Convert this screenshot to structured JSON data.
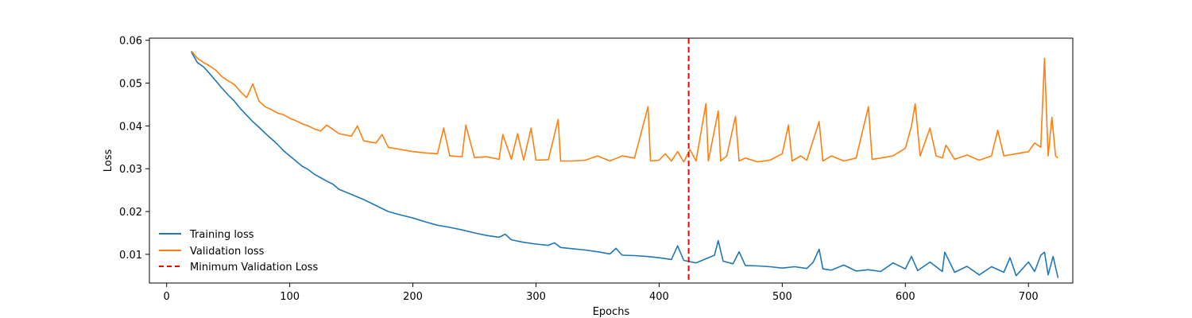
{
  "chart_data": {
    "type": "line",
    "xlabel": "Epochs",
    "ylabel": "Loss",
    "xlim": [
      -14,
      736
    ],
    "ylim": [
      0.0033,
      0.0605
    ],
    "xticks": [
      0,
      100,
      200,
      300,
      400,
      500,
      600,
      700
    ],
    "yticks": [
      0.01,
      0.02,
      0.03,
      0.04,
      0.05,
      0.06
    ],
    "x_tick_labels": [
      "0",
      "100",
      "200",
      "300",
      "400",
      "500",
      "600",
      "700"
    ],
    "y_tick_labels": [
      "0.01",
      "0.02",
      "0.03",
      "0.04",
      "0.05",
      "0.06"
    ],
    "legend_position": "lower-left",
    "series": [
      {
        "name": "Training loss",
        "color": "#1f77b4",
        "points": [
          [
            20,
            0.0573
          ],
          [
            25,
            0.0548
          ],
          [
            30,
            0.0538
          ],
          [
            35,
            0.0522
          ],
          [
            40,
            0.0505
          ],
          [
            45,
            0.0488
          ],
          [
            50,
            0.0472
          ],
          [
            55,
            0.0458
          ],
          [
            60,
            0.044
          ],
          [
            65,
            0.0425
          ],
          [
            70,
            0.041
          ],
          [
            75,
            0.0397
          ],
          [
            80,
            0.0383
          ],
          [
            85,
            0.037
          ],
          [
            90,
            0.0357
          ],
          [
            95,
            0.0342
          ],
          [
            100,
            0.033
          ],
          [
            105,
            0.0318
          ],
          [
            110,
            0.0306
          ],
          [
            115,
            0.0298
          ],
          [
            120,
            0.0287
          ],
          [
            125,
            0.0279
          ],
          [
            130,
            0.0271
          ],
          [
            135,
            0.0264
          ],
          [
            140,
            0.0252
          ],
          [
            150,
            0.024
          ],
          [
            160,
            0.0228
          ],
          [
            170,
            0.0214
          ],
          [
            180,
            0.02
          ],
          [
            190,
            0.0192
          ],
          [
            200,
            0.0185
          ],
          [
            210,
            0.0176
          ],
          [
            220,
            0.0168
          ],
          [
            230,
            0.0163
          ],
          [
            240,
            0.0157
          ],
          [
            250,
            0.015
          ],
          [
            260,
            0.0144
          ],
          [
            270,
            0.014
          ],
          [
            275,
            0.0147
          ],
          [
            280,
            0.0134
          ],
          [
            290,
            0.0128
          ],
          [
            300,
            0.0124
          ],
          [
            310,
            0.0121
          ],
          [
            315,
            0.0127
          ],
          [
            320,
            0.0116
          ],
          [
            330,
            0.0113
          ],
          [
            340,
            0.011
          ],
          [
            350,
            0.0106
          ],
          [
            360,
            0.0101
          ],
          [
            365,
            0.0114
          ],
          [
            370,
            0.0098
          ],
          [
            380,
            0.0097
          ],
          [
            390,
            0.0095
          ],
          [
            400,
            0.0092
          ],
          [
            410,
            0.0088
          ],
          [
            415,
            0.012
          ],
          [
            420,
            0.0086
          ],
          [
            425,
            0.0083
          ],
          [
            430,
            0.008
          ],
          [
            440,
            0.0092
          ],
          [
            445,
            0.0098
          ],
          [
            448,
            0.0132
          ],
          [
            452,
            0.0084
          ],
          [
            460,
            0.0078
          ],
          [
            465,
            0.0106
          ],
          [
            470,
            0.0074
          ],
          [
            480,
            0.0073
          ],
          [
            490,
            0.0071
          ],
          [
            500,
            0.0068
          ],
          [
            510,
            0.0071
          ],
          [
            520,
            0.0067
          ],
          [
            525,
            0.0081
          ],
          [
            530,
            0.0112
          ],
          [
            533,
            0.0066
          ],
          [
            540,
            0.0063
          ],
          [
            550,
            0.0075
          ],
          [
            560,
            0.0061
          ],
          [
            570,
            0.0064
          ],
          [
            580,
            0.006
          ],
          [
            590,
            0.008
          ],
          [
            600,
            0.0066
          ],
          [
            605,
            0.0095
          ],
          [
            610,
            0.0062
          ],
          [
            620,
            0.0082
          ],
          [
            630,
            0.006
          ],
          [
            632,
            0.0105
          ],
          [
            640,
            0.0058
          ],
          [
            650,
            0.0072
          ],
          [
            660,
            0.0052
          ],
          [
            670,
            0.0071
          ],
          [
            680,
            0.0058
          ],
          [
            685,
            0.0092
          ],
          [
            690,
            0.005
          ],
          [
            700,
            0.0082
          ],
          [
            705,
            0.006
          ],
          [
            710,
            0.0098
          ],
          [
            713,
            0.0105
          ],
          [
            716,
            0.0052
          ],
          [
            720,
            0.0095
          ],
          [
            724,
            0.0045
          ]
        ]
      },
      {
        "name": "Validation loss",
        "color": "#ff7f0e",
        "points": [
          [
            20,
            0.0575
          ],
          [
            25,
            0.0558
          ],
          [
            30,
            0.0548
          ],
          [
            35,
            0.054
          ],
          [
            40,
            0.053
          ],
          [
            45,
            0.0515
          ],
          [
            50,
            0.0505
          ],
          [
            55,
            0.0497
          ],
          [
            60,
            0.048
          ],
          [
            65,
            0.0466
          ],
          [
            70,
            0.0498
          ],
          [
            75,
            0.0458
          ],
          [
            80,
            0.0445
          ],
          [
            85,
            0.0438
          ],
          [
            90,
            0.043
          ],
          [
            95,
            0.0426
          ],
          [
            100,
            0.0418
          ],
          [
            105,
            0.0412
          ],
          [
            110,
            0.0405
          ],
          [
            115,
            0.04
          ],
          [
            120,
            0.0393
          ],
          [
            125,
            0.0388
          ],
          [
            130,
            0.0402
          ],
          [
            140,
            0.0382
          ],
          [
            150,
            0.0376
          ],
          [
            155,
            0.04
          ],
          [
            160,
            0.0365
          ],
          [
            170,
            0.036
          ],
          [
            175,
            0.038
          ],
          [
            180,
            0.035
          ],
          [
            190,
            0.0345
          ],
          [
            200,
            0.034
          ],
          [
            210,
            0.0337
          ],
          [
            220,
            0.0335
          ],
          [
            225,
            0.0395
          ],
          [
            230,
            0.033
          ],
          [
            240,
            0.0328
          ],
          [
            243,
            0.0402
          ],
          [
            250,
            0.0326
          ],
          [
            260,
            0.0328
          ],
          [
            270,
            0.0322
          ],
          [
            273,
            0.038
          ],
          [
            280,
            0.0322
          ],
          [
            285,
            0.0382
          ],
          [
            290,
            0.032
          ],
          [
            296,
            0.0395
          ],
          [
            300,
            0.032
          ],
          [
            310,
            0.0321
          ],
          [
            318,
            0.0415
          ],
          [
            320,
            0.0318
          ],
          [
            330,
            0.0318
          ],
          [
            340,
            0.032
          ],
          [
            350,
            0.033
          ],
          [
            360,
            0.0318
          ],
          [
            370,
            0.033
          ],
          [
            380,
            0.0325
          ],
          [
            391,
            0.0445
          ],
          [
            393,
            0.0318
          ],
          [
            400,
            0.032
          ],
          [
            405,
            0.0335
          ],
          [
            410,
            0.0318
          ],
          [
            415,
            0.034
          ],
          [
            420,
            0.0316
          ],
          [
            425,
            0.0345
          ],
          [
            430,
            0.0318
          ],
          [
            438,
            0.0452
          ],
          [
            440,
            0.0318
          ],
          [
            448,
            0.0435
          ],
          [
            450,
            0.0318
          ],
          [
            455,
            0.033
          ],
          [
            462,
            0.0422
          ],
          [
            465,
            0.0318
          ],
          [
            470,
            0.0325
          ],
          [
            480,
            0.0316
          ],
          [
            490,
            0.032
          ],
          [
            500,
            0.0335
          ],
          [
            505,
            0.0402
          ],
          [
            508,
            0.0318
          ],
          [
            515,
            0.033
          ],
          [
            520,
            0.032
          ],
          [
            530,
            0.041
          ],
          [
            533,
            0.0318
          ],
          [
            540,
            0.033
          ],
          [
            550,
            0.0318
          ],
          [
            560,
            0.0325
          ],
          [
            570,
            0.0445
          ],
          [
            573,
            0.0322
          ],
          [
            580,
            0.0325
          ],
          [
            590,
            0.033
          ],
          [
            600,
            0.0348
          ],
          [
            605,
            0.04
          ],
          [
            608,
            0.0452
          ],
          [
            612,
            0.033
          ],
          [
            620,
            0.0395
          ],
          [
            625,
            0.033
          ],
          [
            630,
            0.0325
          ],
          [
            633,
            0.0355
          ],
          [
            640,
            0.0322
          ],
          [
            650,
            0.0332
          ],
          [
            660,
            0.032
          ],
          [
            670,
            0.033
          ],
          [
            675,
            0.039
          ],
          [
            680,
            0.033
          ],
          [
            690,
            0.0335
          ],
          [
            700,
            0.034
          ],
          [
            705,
            0.036
          ],
          [
            710,
            0.035
          ],
          [
            713,
            0.0558
          ],
          [
            716,
            0.033
          ],
          [
            719,
            0.042
          ],
          [
            722,
            0.033
          ],
          [
            724,
            0.0325
          ]
        ]
      },
      {
        "name": "Minimum Validation Loss",
        "color": "#ff0000",
        "style": "dashed",
        "vertical_line_x": 424
      }
    ]
  }
}
